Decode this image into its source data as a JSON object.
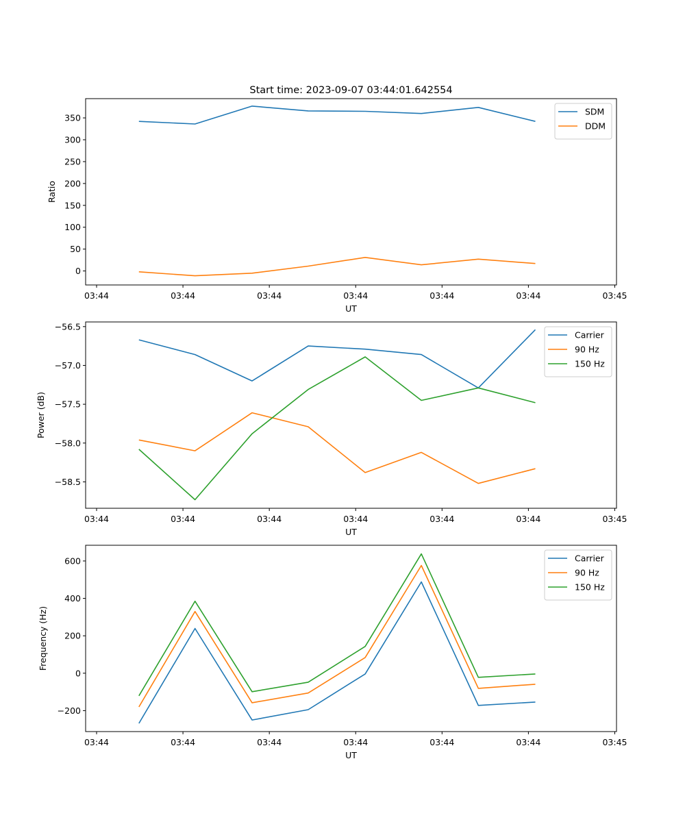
{
  "figure_title": "Start time: 2023-09-07 03:44:01.642554",
  "chart_data": [
    {
      "type": "line",
      "title": "Start time: 2023-09-07 03:44:01.642554",
      "xlabel": "UT",
      "ylabel": "Ratio",
      "x": [
        0.49,
        1.14,
        1.8,
        2.45,
        3.11,
        3.76,
        4.42,
        5.08
      ],
      "xlim": [
        -0.127,
        6.02
      ],
      "xticks": [
        0,
        1,
        2,
        3,
        4,
        5,
        6
      ],
      "xtick_labels": [
        "03:44",
        "03:44",
        "03:44",
        "03:44",
        "03:44",
        "03:44",
        "03:45"
      ],
      "ylim": [
        -32,
        394
      ],
      "yticks": [
        0,
        50,
        100,
        150,
        200,
        250,
        300,
        350
      ],
      "ytick_labels": [
        "0",
        "50",
        "100",
        "150",
        "200",
        "250",
        "300",
        "350"
      ],
      "grid": false,
      "legend": "top-right",
      "series": [
        {
          "name": "SDM",
          "color": "#1f77b4",
          "values": [
            342,
            336,
            377,
            366,
            365,
            360,
            374,
            342
          ]
        },
        {
          "name": "DDM",
          "color": "#ff7f0e",
          "values": [
            -2,
            -11,
            -5,
            11,
            31,
            14,
            27,
            17
          ]
        }
      ]
    },
    {
      "type": "line",
      "title": "",
      "xlabel": "UT",
      "ylabel": "Power (dB)",
      "x": [
        0.49,
        1.14,
        1.8,
        2.45,
        3.11,
        3.76,
        4.42,
        5.08
      ],
      "xlim": [
        -0.127,
        6.02
      ],
      "xticks": [
        0,
        1,
        2,
        3,
        4,
        5,
        6
      ],
      "xtick_labels": [
        "03:44",
        "03:44",
        "03:44",
        "03:44",
        "03:44",
        "03:44",
        "03:45"
      ],
      "ylim": [
        -58.84,
        -56.44
      ],
      "yticks": [
        -56.5,
        -57.0,
        -57.5,
        -58.0,
        -58.5
      ],
      "ytick_labels": [
        "−56.5",
        "−57.0",
        "−57.5",
        "−58.0",
        "−58.5"
      ],
      "grid": false,
      "legend": "top-right",
      "series": [
        {
          "name": "Carrier",
          "color": "#1f77b4",
          "values": [
            -56.67,
            -56.86,
            -57.2,
            -56.75,
            -56.79,
            -56.86,
            -57.29,
            -56.54
          ]
        },
        {
          "name": "90 Hz",
          "color": "#ff7f0e",
          "values": [
            -57.96,
            -58.1,
            -57.61,
            -57.79,
            -58.38,
            -58.12,
            -58.52,
            -58.33
          ]
        },
        {
          "name": "150 Hz",
          "color": "#2ca02c",
          "values": [
            -58.08,
            -58.73,
            -57.88,
            -57.31,
            -56.89,
            -57.45,
            -57.29,
            -57.48
          ]
        }
      ]
    },
    {
      "type": "line",
      "title": "",
      "xlabel": "UT",
      "ylabel": "Frequency (Hz)",
      "x": [
        0.49,
        1.14,
        1.8,
        2.45,
        3.11,
        3.76,
        4.42,
        5.08
      ],
      "xlim": [
        -0.127,
        6.02
      ],
      "xticks": [
        0,
        1,
        2,
        3,
        4,
        5,
        6
      ],
      "xtick_labels": [
        "03:44",
        "03:44",
        "03:44",
        "03:44",
        "03:44",
        "03:44",
        "03:45"
      ],
      "ylim": [
        -312,
        684
      ],
      "yticks": [
        -200,
        0,
        200,
        400,
        600
      ],
      "ytick_labels": [
        "−200",
        "0",
        "200",
        "400",
        "600"
      ],
      "grid": false,
      "legend": "top-right",
      "series": [
        {
          "name": "Carrier",
          "color": "#1f77b4",
          "values": [
            -268,
            239,
            -250,
            -195,
            -4,
            488,
            -172,
            -154
          ]
        },
        {
          "name": "90 Hz",
          "color": "#ff7f0e",
          "values": [
            -180,
            330,
            -158,
            -106,
            84,
            576,
            -81,
            -59
          ]
        },
        {
          "name": "150 Hz",
          "color": "#2ca02c",
          "values": [
            -121,
            385,
            -99,
            -48,
            143,
            638,
            -22,
            -4
          ]
        }
      ]
    }
  ]
}
